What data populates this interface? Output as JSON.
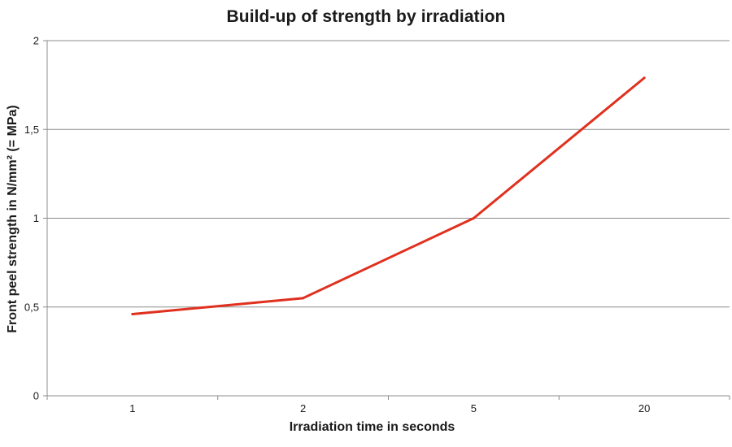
{
  "chart_data": {
    "type": "line",
    "title": "Build-up of strength by irradiation",
    "xlabel": "Irradiation time in seconds",
    "ylabel": "Front peel strength in N/mm² (= MPa)",
    "categories": [
      "1",
      "2",
      "5",
      "20"
    ],
    "series": [
      {
        "values": [
          0.46,
          0.55,
          1.0,
          1.79
        ],
        "color": "#e0301e"
      }
    ],
    "ylim": [
      0,
      2
    ],
    "yticks": [
      {
        "value": 0,
        "label": "0"
      },
      {
        "value": 0.5,
        "label": "0,5"
      },
      {
        "value": 1,
        "label": "1"
      },
      {
        "value": 1.5,
        "label": "1,5"
      },
      {
        "value": 2,
        "label": "2"
      }
    ],
    "grid": true,
    "legend": "none"
  }
}
